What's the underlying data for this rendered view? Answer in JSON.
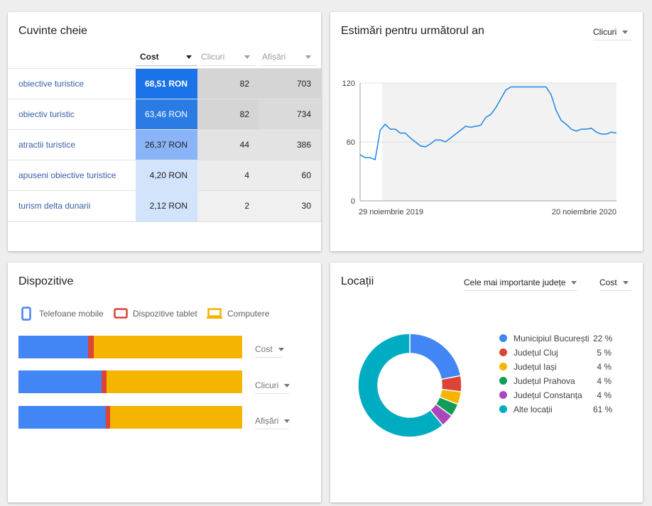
{
  "keywords": {
    "title": "Cuvinte cheie",
    "columns": {
      "cost": "Cost",
      "clicks": "Clicuri",
      "impressions": "Afișări"
    },
    "rows": [
      {
        "keyword": "obiective turistice",
        "cost": "68,51 RON",
        "clicks": "82",
        "impressions": "703"
      },
      {
        "keyword": "obiectiv turistic",
        "cost": "63,46 RON",
        "clicks": "82",
        "impressions": "734"
      },
      {
        "keyword": "atractii turistice",
        "cost": "26,37 RON",
        "clicks": "44",
        "impressions": "386"
      },
      {
        "keyword": "apuseni obiective turistice",
        "cost": "4,20 RON",
        "clicks": "4",
        "impressions": "60"
      },
      {
        "keyword": "turism delta dunarii",
        "cost": "2,12 RON",
        "clicks": "2",
        "impressions": "30"
      }
    ],
    "colors": {
      "cost_cells": [
        "#1a73e8",
        "#2a7be4",
        "#8ab4f8",
        "#d2e3fc",
        "#d2e3fc"
      ],
      "metric_cells": [
        "#d5d5d5",
        "#d5d5d5",
        "#e3e3e3",
        "#ececec",
        "#f0f0f0"
      ]
    }
  },
  "forecast": {
    "title": "Estimări pentru următorul an",
    "metric_select": "Clicuri",
    "chart_data": {
      "type": "line",
      "x_start_label": "29 noiembrie 2019",
      "x_end_label": "20 noiembrie 2020",
      "yticks": [
        "120",
        "60",
        "0"
      ],
      "ylim": [
        0,
        120
      ],
      "color": "#1e88e5",
      "values": [
        47,
        44,
        44,
        42,
        72,
        78,
        73,
        73,
        69,
        69,
        64,
        60,
        56,
        55,
        58,
        62,
        62,
        60,
        64,
        68,
        72,
        76,
        75,
        76,
        77,
        85,
        88,
        95,
        104,
        113,
        116,
        116,
        116,
        116,
        116,
        116,
        116,
        116,
        108,
        92,
        82,
        78,
        73,
        71,
        73,
        73,
        74,
        70,
        68,
        68,
        70,
        69
      ]
    }
  },
  "devices": {
    "title": "Dispozitive",
    "legend": [
      "Telefoane mobile",
      "Dispozitive tablet",
      "Computere"
    ],
    "colors": [
      "#4285f4",
      "#db4437",
      "#f4b400"
    ],
    "metrics": [
      {
        "label": "Cost",
        "shares": [
          0.31,
          0.025,
          0.665
        ]
      },
      {
        "label": "Clicuri",
        "shares": [
          0.37,
          0.025,
          0.605
        ]
      },
      {
        "label": "Afișări",
        "shares": [
          0.39,
          0.02,
          0.59
        ]
      }
    ]
  },
  "locations": {
    "title": "Locații",
    "filter_select": "Cele mai importante județe",
    "metric_select": "Cost",
    "items": [
      {
        "name": "Municipiul București",
        "value": "22 %",
        "share": 22,
        "color": "#4285f4"
      },
      {
        "name": "Județul Cluj",
        "value": "5 %",
        "share": 5,
        "color": "#db4437"
      },
      {
        "name": "Județul Iași",
        "value": "4 %",
        "share": 4,
        "color": "#f4b400"
      },
      {
        "name": "Județul Prahova",
        "value": "4 %",
        "share": 4,
        "color": "#0f9d58"
      },
      {
        "name": "Județul Constanța",
        "value": "4 %",
        "share": 4,
        "color": "#ab47bc"
      },
      {
        "name": "Alte locații",
        "value": "61 %",
        "share": 61,
        "color": "#00acc1"
      }
    ]
  }
}
